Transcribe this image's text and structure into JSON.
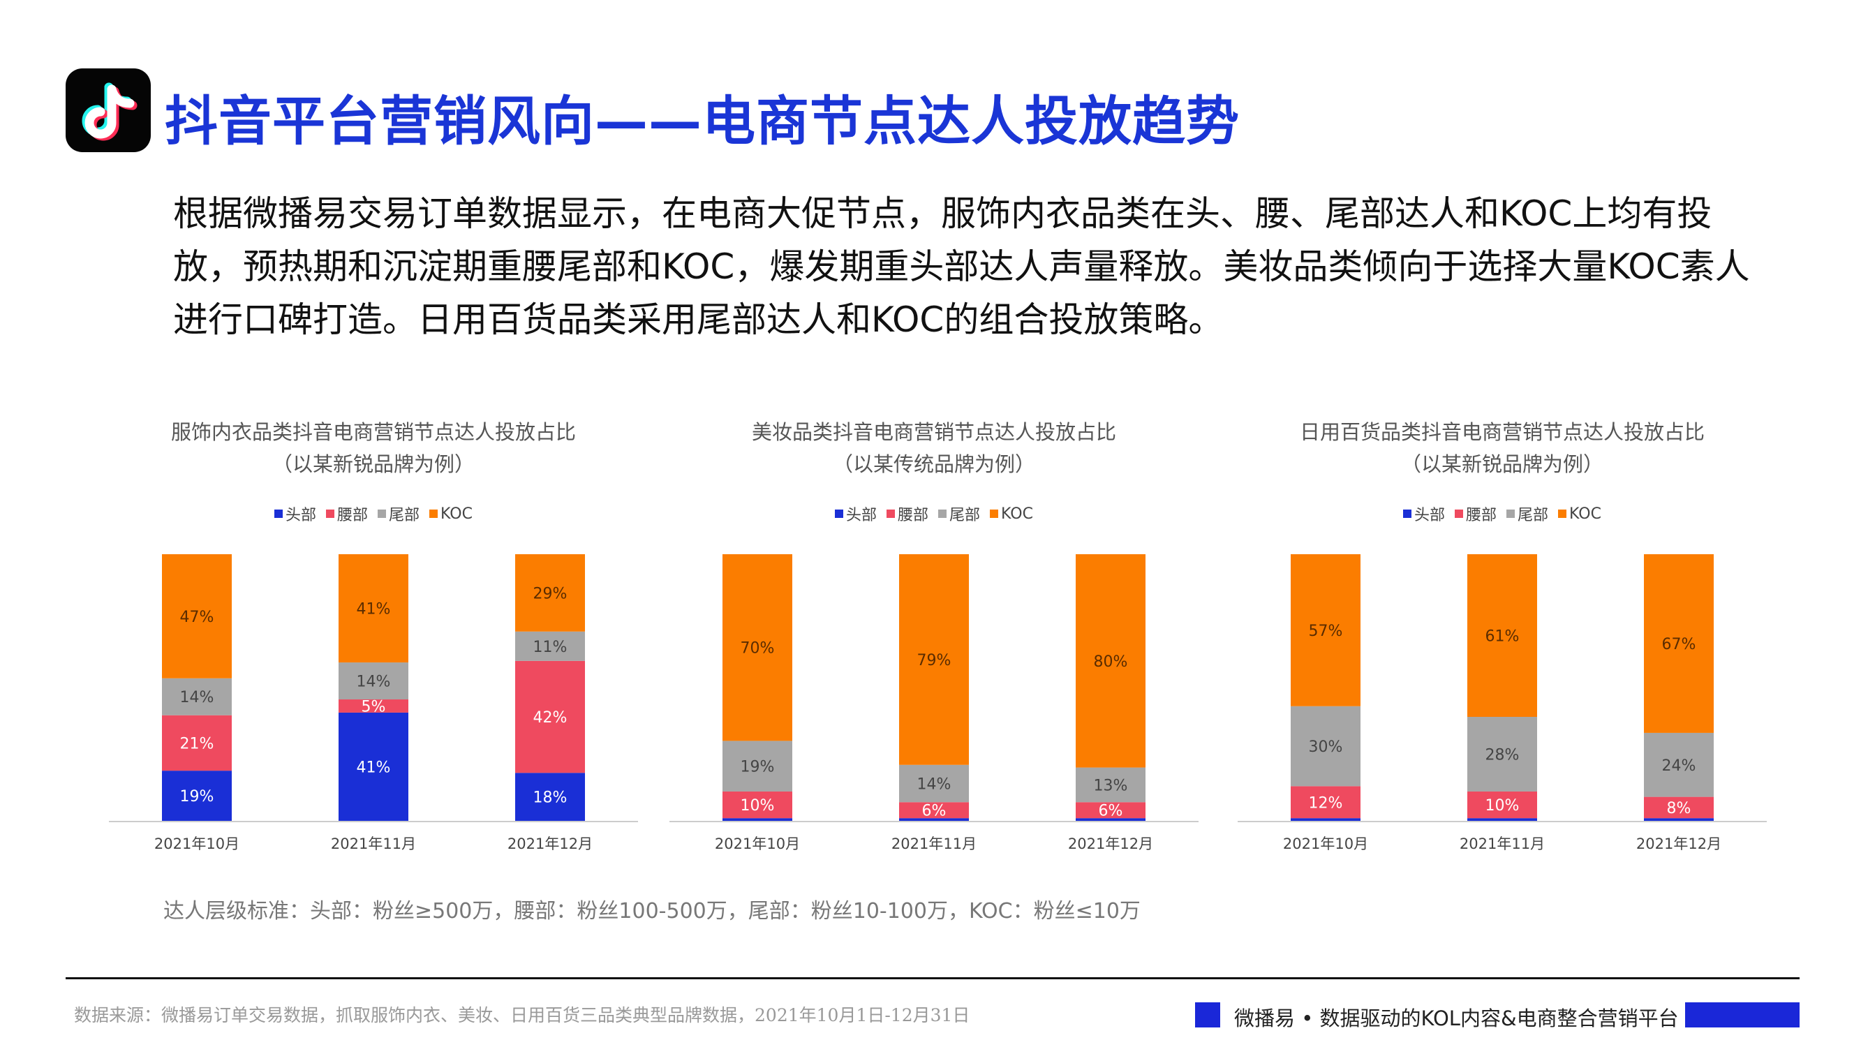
{
  "page": {
    "title": "抖音平台营销风向——电商节点达人投放趋势",
    "description": "根据微播易交易订单数据显示，在电商大促节点，服饰内衣品类在头、腰、尾部达人和KOC上均有投放，预热期和沉淀期重腰尾部和KOC，爆发期重头部达人声量释放。美妆品类倾向于选择大量KOC素人进行口碑打造。日用百货品类采用尾部达人和KOC的组合投放策略。",
    "standard": "达人层级标准：头部：粉丝≥500万，腰部：粉丝100-500万，尾部：粉丝10-100万，KOC：粉丝≤10万",
    "source": "数据来源：微播易订单交易数据，抓取服饰内衣、美妆、日用百货三品类典型品牌数据，2021年10月1日-12月31日",
    "slogan": "微播易 • 数据驱动的KOL内容&电商整合营销平台",
    "logo_icon": "tiktok-note-icon"
  },
  "colors": {
    "头部": "#1a2fd6",
    "腰部": "#ef4a5f",
    "尾部": "#a6a6a6",
    "KOC": "#fb7d00",
    "title": "#1a35d6"
  },
  "chart_data": [
    {
      "type": "bar",
      "stacked": true,
      "title": "服饰内衣品类抖音电商营销节点达人投放占比",
      "subtitle": "（以某新锐品牌为例）",
      "categories": [
        "2021年10月",
        "2021年11月",
        "2021年12月"
      ],
      "series": [
        {
          "name": "头部",
          "values": [
            19,
            41,
            18
          ]
        },
        {
          "name": "腰部",
          "values": [
            21,
            5,
            42
          ]
        },
        {
          "name": "尾部",
          "values": [
            14,
            14,
            11
          ]
        },
        {
          "name": "KOC",
          "values": [
            47,
            41,
            29
          ]
        }
      ],
      "legend": "top",
      "ylim": [
        0,
        100
      ],
      "grid": false
    },
    {
      "type": "bar",
      "stacked": true,
      "title": "美妆品类抖音电商营销节点达人投放占比",
      "subtitle": "（以某传统品牌为例）",
      "categories": [
        "2021年10月",
        "2021年11月",
        "2021年12月"
      ],
      "series": [
        {
          "name": "头部",
          "values": [
            1,
            1,
            1
          ]
        },
        {
          "name": "腰部",
          "values": [
            10,
            6,
            6
          ]
        },
        {
          "name": "尾部",
          "values": [
            19,
            14,
            13
          ]
        },
        {
          "name": "KOC",
          "values": [
            70,
            79,
            80
          ]
        }
      ],
      "hidden_labels": {
        "头部": true
      },
      "legend": "top",
      "ylim": [
        0,
        100
      ],
      "grid": false
    },
    {
      "type": "bar",
      "stacked": true,
      "title": "日用百货品类抖音电商营销节点达人投放占比",
      "subtitle": "（以某新锐品牌为例）",
      "categories": [
        "2021年10月",
        "2021年11月",
        "2021年12月"
      ],
      "series": [
        {
          "name": "头部",
          "values": [
            1,
            1,
            1
          ]
        },
        {
          "name": "腰部",
          "values": [
            12,
            10,
            8
          ]
        },
        {
          "name": "尾部",
          "values": [
            30,
            28,
            24
          ]
        },
        {
          "name": "KOC",
          "values": [
            57,
            61,
            67
          ]
        }
      ],
      "hidden_labels": {
        "头部": true
      },
      "legend": "top",
      "ylim": [
        0,
        100
      ],
      "grid": false
    }
  ]
}
